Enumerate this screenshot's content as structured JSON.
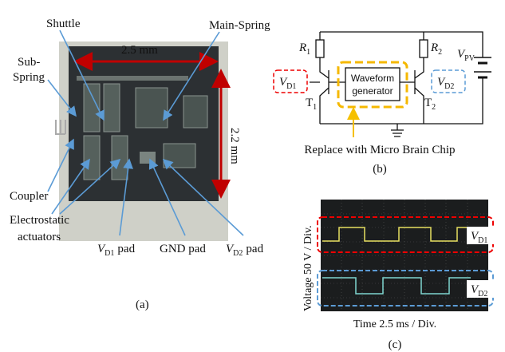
{
  "panel_a": {
    "shuttle": "Shuttle",
    "main_spring": "Main-Spring",
    "width": "2.5 mm",
    "height": "2.2 mm",
    "sub_spring": [
      "Sub-",
      "Spring"
    ],
    "coupler": "Coupler",
    "actuators": [
      "Electrostatic",
      "actuators"
    ],
    "vd1_pad": {
      "symbol": "V",
      "sub": "D1",
      "text": "pad"
    },
    "gnd_pad": "GND pad",
    "vd2_pad": {
      "symbol": "V",
      "sub": "D2",
      "text": "pad"
    },
    "caption": "(a)"
  },
  "panel_b": {
    "r1": {
      "symbol": "R",
      "sub": "1"
    },
    "r2": {
      "symbol": "R",
      "sub": "2"
    },
    "vpv": {
      "symbol": "V",
      "sub": "PV"
    },
    "vd1": {
      "symbol": "V",
      "sub": "D1"
    },
    "vd2": {
      "symbol": "V",
      "sub": "D2"
    },
    "t1": {
      "symbol": "T",
      "sub": "1"
    },
    "t2": {
      "symbol": "T",
      "sub": "2"
    },
    "block": [
      "Waveform",
      "generator"
    ],
    "note": "Replace with Micro Brain Chip",
    "caption": "(b)"
  },
  "panel_c": {
    "y_label": "Voltage 50 V / Div.",
    "x_label": "Time 2.5 ms / Div.",
    "vd1": {
      "symbol": "V",
      "sub": "D1"
    },
    "vd2": {
      "symbol": "V",
      "sub": "D2"
    },
    "caption": "(c)"
  }
}
